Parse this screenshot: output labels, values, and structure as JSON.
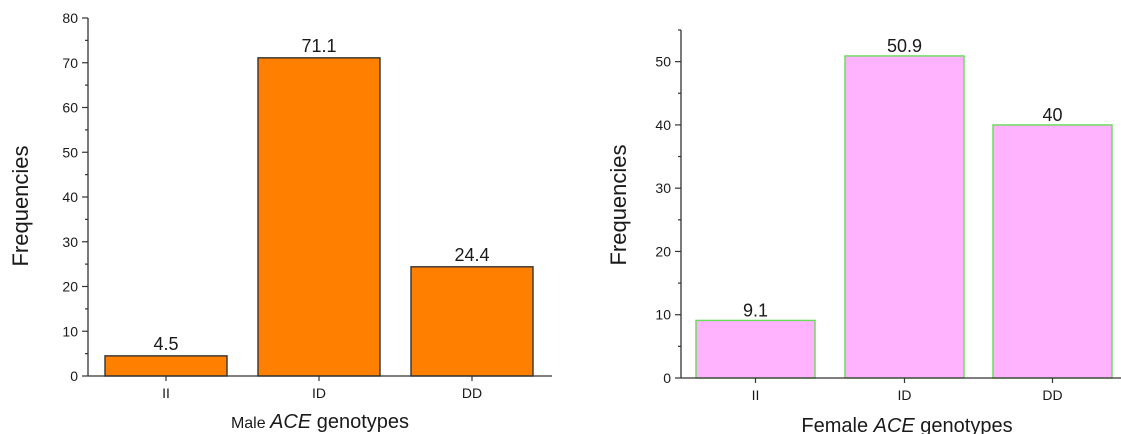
{
  "chart_data": [
    {
      "type": "bar",
      "categories": [
        "II",
        "ID",
        "DD"
      ],
      "values": [
        4.5,
        71.1,
        24.4
      ],
      "data_labels": [
        "4.5",
        "71.1",
        "24.4"
      ],
      "title": "",
      "xlabel_parts": [
        {
          "text": "Male ",
          "italic": false
        },
        {
          "text": "ACE",
          "italic": true
        },
        {
          "text": " genotypes",
          "italic": false
        }
      ],
      "ylabel": "Frequencies",
      "ylim": [
        0,
        80
      ],
      "yticks": [
        0,
        10,
        20,
        30,
        40,
        50,
        60,
        70,
        80
      ],
      "grid": false,
      "bar_fill": "#ff8000",
      "bar_stroke": "#333333"
    },
    {
      "type": "bar",
      "categories": [
        "II",
        "ID",
        "DD"
      ],
      "values": [
        9.1,
        50.9,
        40
      ],
      "data_labels": [
        "9.1",
        "50.9",
        "40"
      ],
      "title": "",
      "xlabel_parts": [
        {
          "text": "Female ",
          "italic": false
        },
        {
          "text": "ACE",
          "italic": true
        },
        {
          "text": " genotypes",
          "italic": false
        }
      ],
      "ylabel": "Frequencies",
      "ylim": [
        0,
        55
      ],
      "yticks": [
        0,
        10,
        20,
        30,
        40,
        50
      ],
      "grid": false,
      "bar_fill": "#ffb3ff",
      "bar_stroke": "#66dd55"
    }
  ]
}
